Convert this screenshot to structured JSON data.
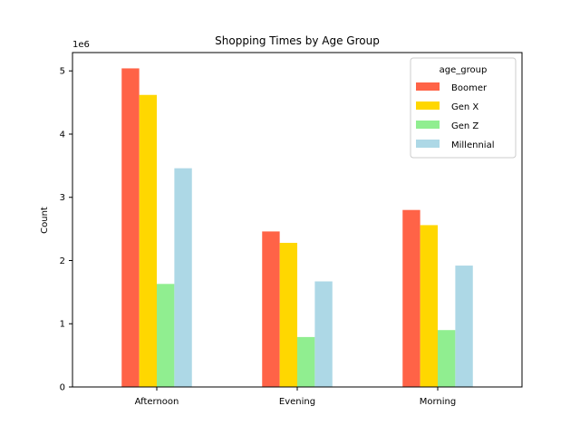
{
  "chart_data": {
    "type": "bar",
    "title": "Shopping Times by Age Group",
    "xlabel": "",
    "ylabel": "Count",
    "y_multiplier_label": "1e6",
    "categories": [
      "Afternoon",
      "Evening",
      "Morning"
    ],
    "series": [
      {
        "name": "Boomer",
        "color": "#ff6347",
        "values": [
          5.04,
          2.46,
          2.8
        ]
      },
      {
        "name": "Gen X",
        "color": "#ffd700",
        "values": [
          4.62,
          2.28,
          2.56
        ]
      },
      {
        "name": "Gen Z",
        "color": "#90ee90",
        "values": [
          1.63,
          0.79,
          0.9
        ]
      },
      {
        "name": "Millennial",
        "color": "#add8e6",
        "values": [
          3.46,
          1.67,
          1.92
        ]
      }
    ],
    "ylim": [
      0,
      5.29
    ],
    "yticks": [
      "0",
      "1",
      "2",
      "3",
      "4",
      "5"
    ],
    "legend": {
      "title": "age_group",
      "placement": "top-right"
    },
    "grid": false
  }
}
